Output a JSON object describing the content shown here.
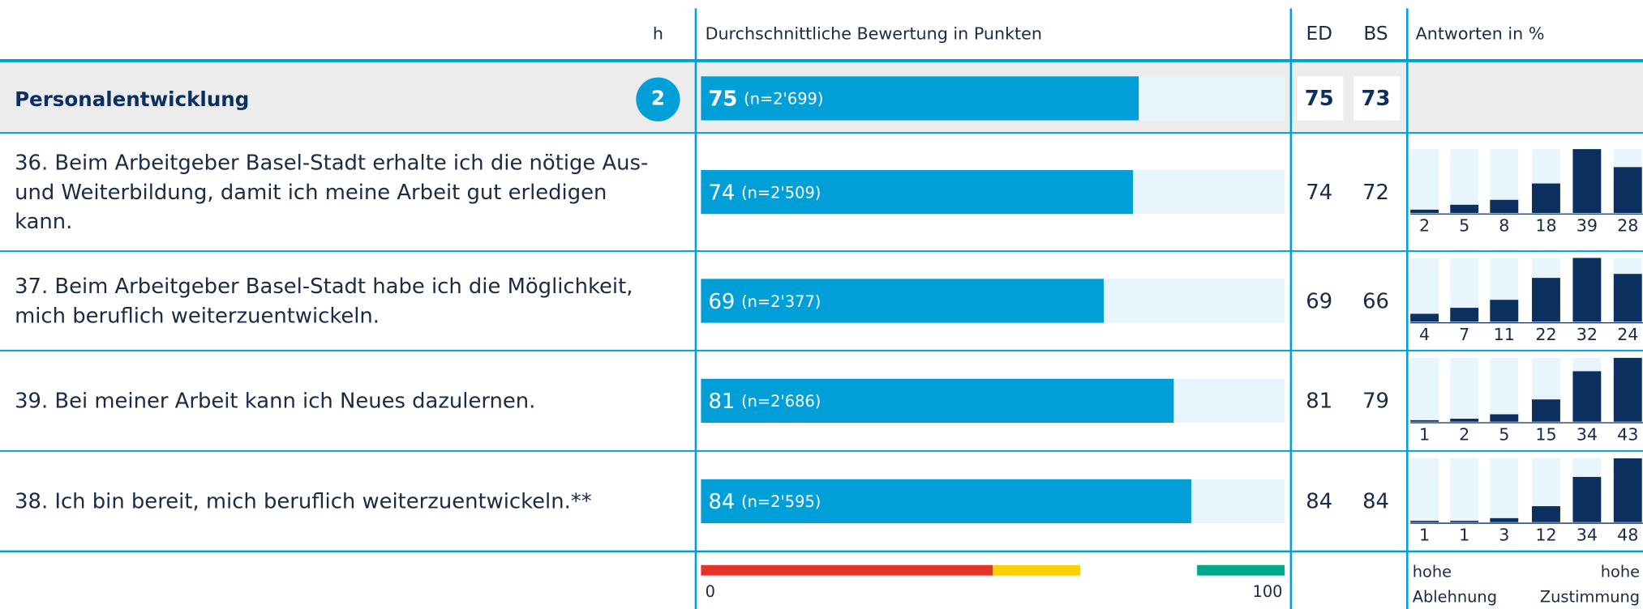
{
  "chart_data": {
    "type": "survey-table",
    "header": {
      "h": "h",
      "score": "Durchschnittliche Bewertung in Punkten",
      "ed": "ED",
      "bs": "BS",
      "answers": "Antworten in %"
    },
    "group": {
      "title": "Personalentwicklung",
      "badge": "2",
      "score": 75,
      "n_label": "(n=2'699)",
      "ed": 75,
      "bs": 73
    },
    "rows": [
      {
        "lines": [
          "36. Beim Arbeitgeber Basel-Stadt erhalte ich die nötige Aus-",
          "und Weiterbildung, damit ich meine Arbeit gut erledigen",
          "kann."
        ],
        "score": 74,
        "n_label": "(n=2'509)",
        "ed": 74,
        "bs": 72,
        "answers": [
          2,
          5,
          8,
          18,
          39,
          28
        ]
      },
      {
        "lines": [
          "37. Beim Arbeitgeber Basel-Stadt habe ich die Möglichkeit,",
          "mich beruflich weiterzuentwickeln."
        ],
        "score": 69,
        "n_label": "(n=2'377)",
        "ed": 69,
        "bs": 66,
        "answers": [
          4,
          7,
          11,
          22,
          32,
          24
        ]
      },
      {
        "lines": [
          "39. Bei meiner Arbeit kann ich Neues dazulernen."
        ],
        "score": 81,
        "n_label": "(n=2'686)",
        "ed": 81,
        "bs": 79,
        "answers": [
          1,
          2,
          5,
          15,
          34,
          43
        ]
      },
      {
        "lines": [
          "38. Ich bin bereit, mich beruflich weiterzuentwickeln.**"
        ],
        "score": 84,
        "n_label": "(n=2'595)",
        "ed": 84,
        "bs": 84,
        "answers": [
          1,
          1,
          3,
          12,
          34,
          48
        ]
      }
    ],
    "xlim": [
      0,
      100
    ],
    "xticks": [
      0,
      100
    ],
    "scale_segments": [
      {
        "from": 0,
        "to": 50,
        "color": "#e5332a"
      },
      {
        "from": 50,
        "to": 65,
        "color": "#fcd000"
      },
      {
        "from": 85,
        "to": 100,
        "color": "#00a88a"
      }
    ],
    "answer_legend": {
      "left": [
        "hohe",
        "Ablehnung"
      ],
      "right": [
        "hohe",
        "Zustimmung"
      ]
    },
    "colors": {
      "bar": "#009fd8",
      "bar_bg": "#e9f5fd",
      "answers": "#0b2f5e"
    }
  }
}
